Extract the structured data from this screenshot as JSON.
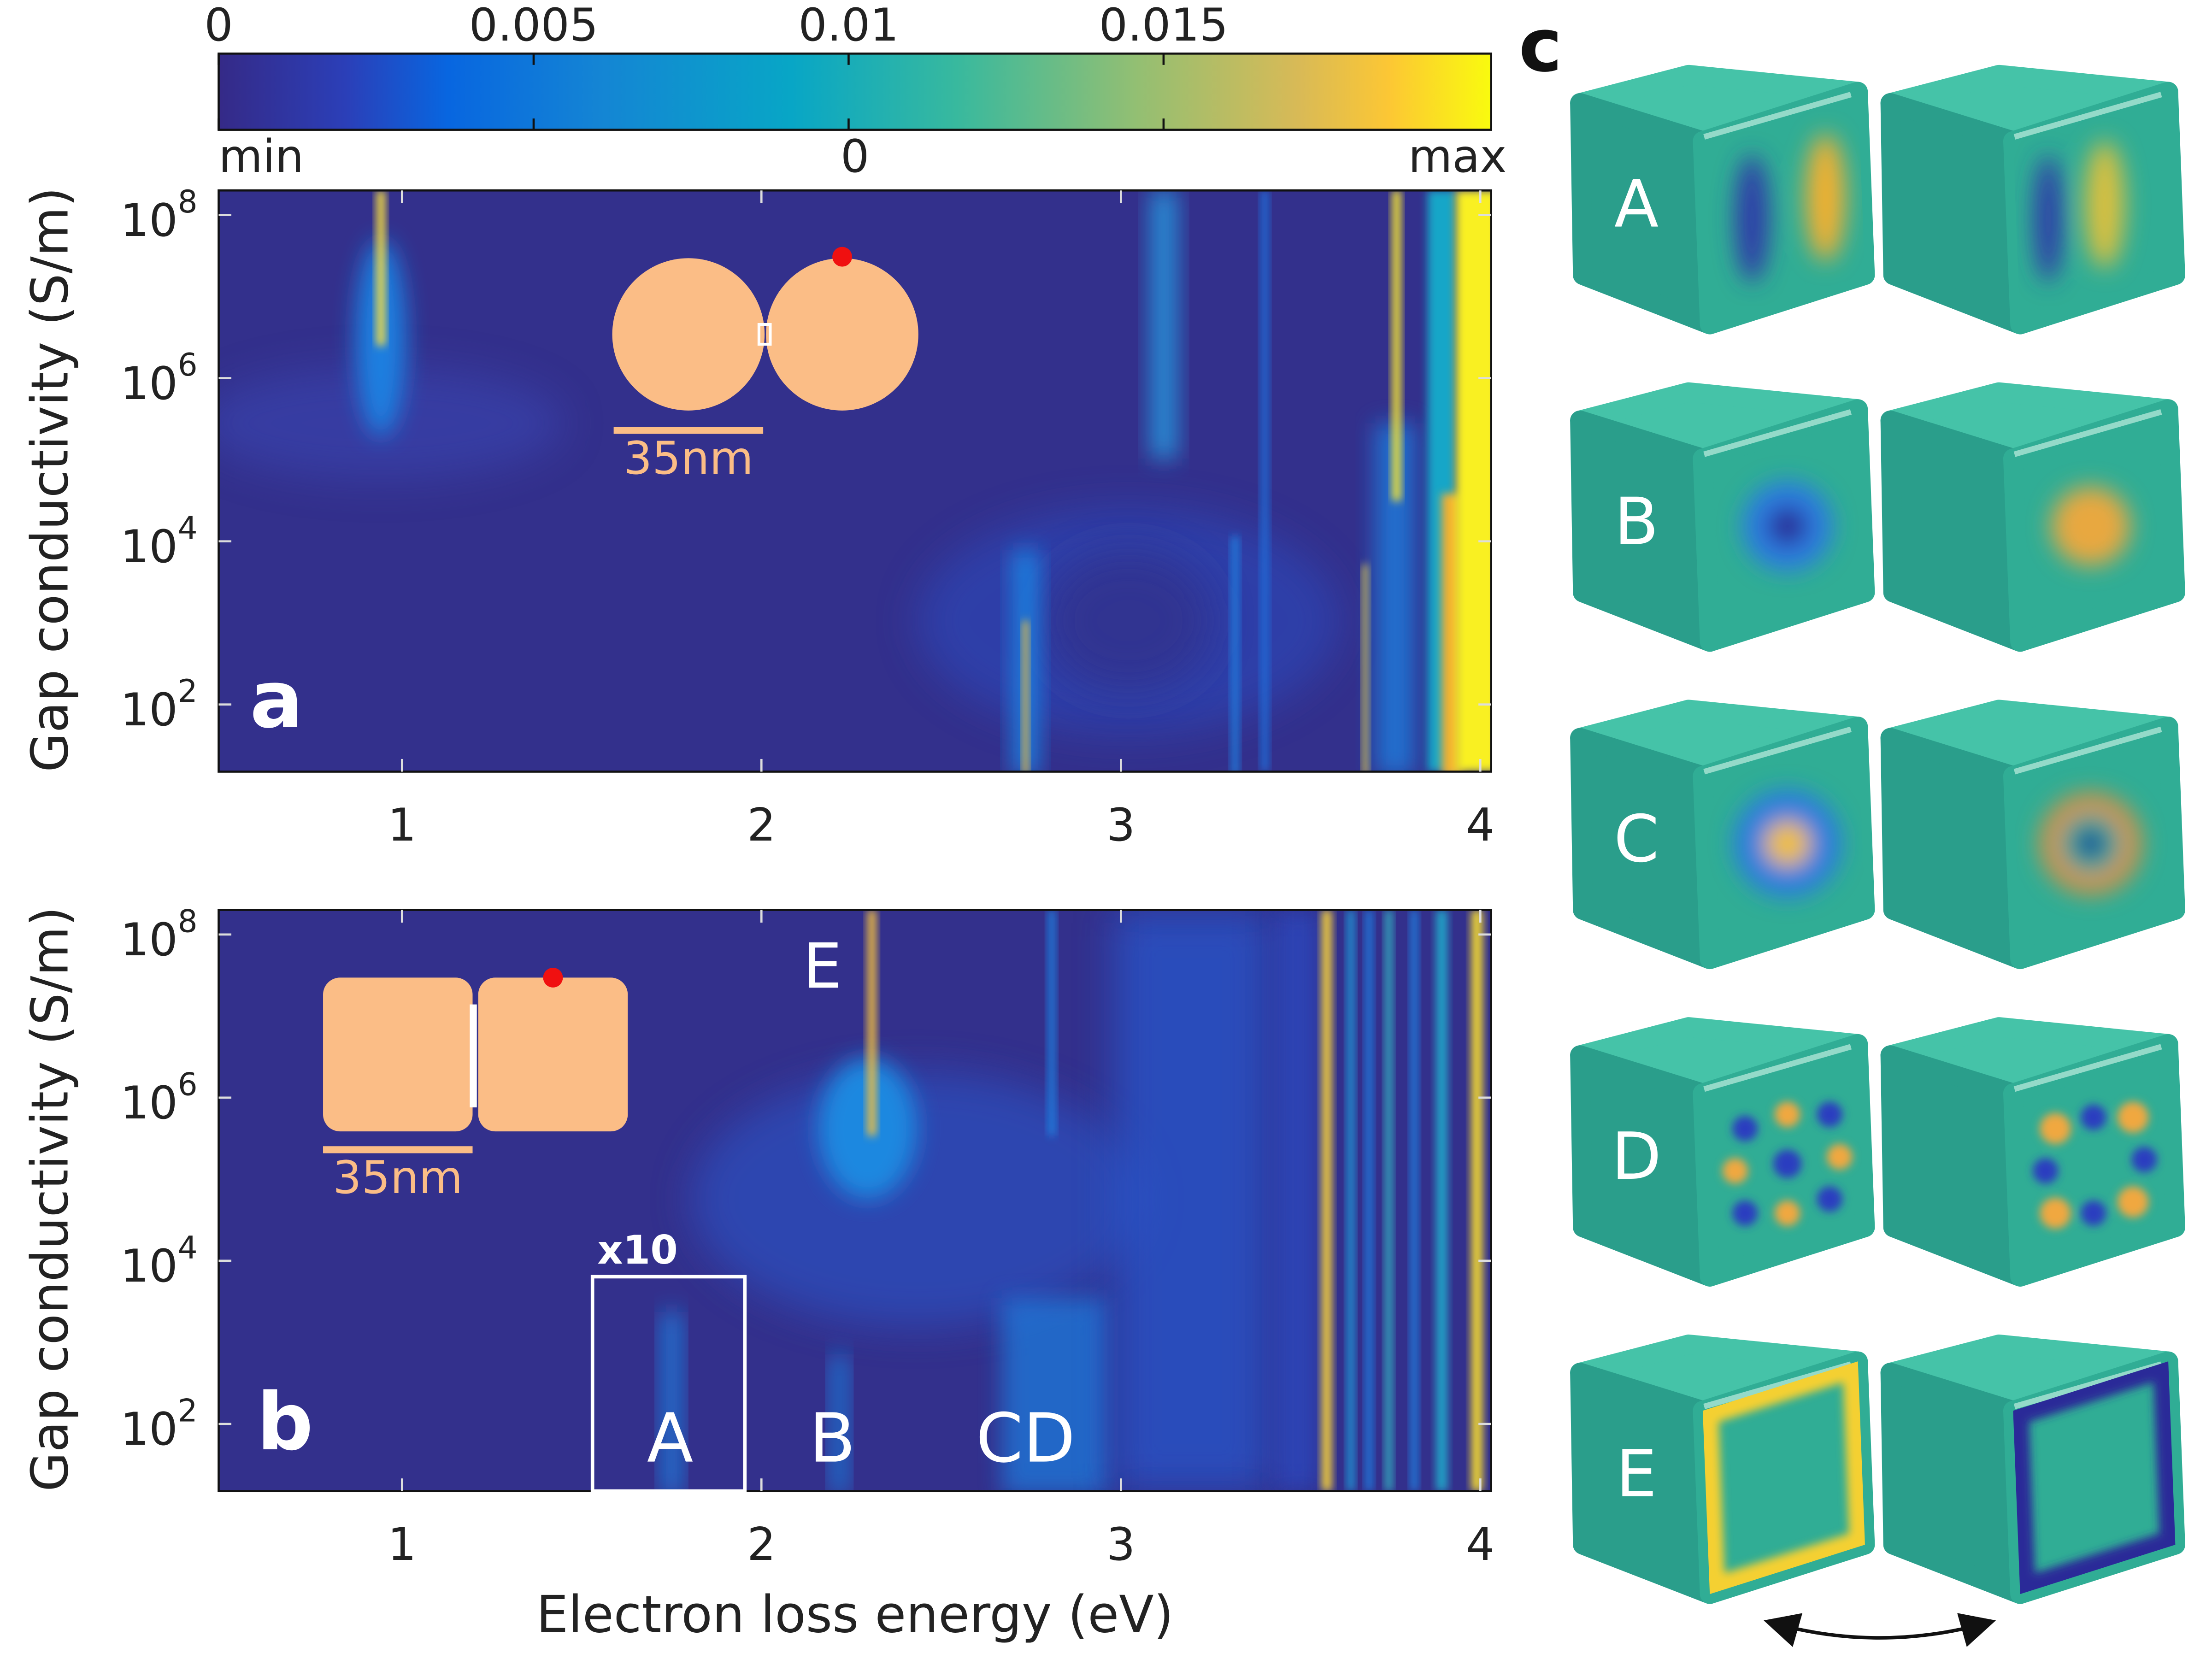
{
  "colorbar": {
    "lim": [
      0,
      0.0202
    ],
    "ticks": [
      0,
      0.005,
      0.01,
      0.015
    ],
    "min_label": "min",
    "mid_label": "0",
    "max_label": "max"
  },
  "ylabel": "Gap conductivity (S/m)",
  "xlabel": "Electron loss energy (eV)",
  "panels": [
    {
      "letter": "a",
      "xlim": [
        0.49,
        4.03
      ],
      "xticks": [
        1,
        2,
        3,
        4
      ],
      "ylim": [
        15,
        200000000
      ],
      "yscale": "log",
      "yticks": [
        {
          "value": 100,
          "label": "10",
          "exponent": "2"
        },
        {
          "value": 10000,
          "label": "10",
          "exponent": "4"
        },
        {
          "value": 1000000,
          "label": "10",
          "exponent": "6"
        },
        {
          "value": 100000000,
          "label": "10",
          "exponent": "8"
        }
      ],
      "scale_bar": "35nm"
    },
    {
      "letter": "b",
      "xlim": [
        0.49,
        4.03
      ],
      "xticks": [
        1,
        2,
        3,
        4
      ],
      "ylim": [
        15,
        200000000
      ],
      "yscale": "log",
      "yticks": [
        {
          "value": 100,
          "label": "10",
          "exponent": "2"
        },
        {
          "value": 10000,
          "label": "10",
          "exponent": "4"
        },
        {
          "value": 1000000,
          "label": "10",
          "exponent": "6"
        },
        {
          "value": 100000000,
          "label": "10",
          "exponent": "8"
        }
      ],
      "scale_bar": "35nm",
      "annotations": [
        "E",
        "x10",
        "A",
        "B",
        "CD"
      ]
    }
  ],
  "panel_c": {
    "letter": "c",
    "modes": [
      "A",
      "B",
      "C",
      "D",
      "E"
    ]
  }
}
